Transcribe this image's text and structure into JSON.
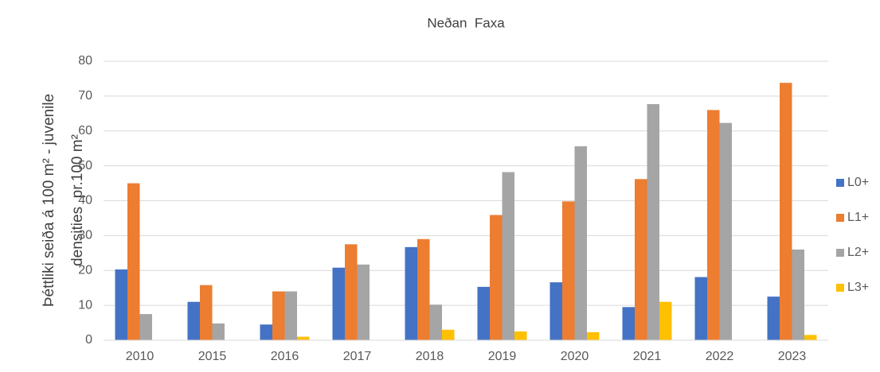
{
  "chart_data": {
    "type": "bar",
    "title": "Neðan  Faxa",
    "y_label": [
      "Þéttliki seiða á 100 m² - juvenile",
      "densities  pr.100 m²"
    ],
    "categories": [
      "2010",
      "2015",
      "2016",
      "2017",
      "2018",
      "2019",
      "2020",
      "2021",
      "2022",
      "2023"
    ],
    "series": [
      {
        "name": "L0+",
        "color": "#4472c4",
        "values": [
          20.3,
          11,
          4.5,
          20.8,
          26.7,
          15.3,
          16.6,
          9.5,
          18.1,
          12.5
        ]
      },
      {
        "name": "L1+",
        "color": "#ed7d31",
        "values": [
          45,
          15.8,
          14,
          27.5,
          29,
          35.9,
          39.8,
          46.2,
          66,
          73.8
        ]
      },
      {
        "name": "L2+",
        "color": "#a5a5a5",
        "values": [
          7.5,
          4.8,
          14,
          21.7,
          10.2,
          48.2,
          55.6,
          67.7,
          62.3,
          26
        ]
      },
      {
        "name": "L3+",
        "color": "#ffc000",
        "values": [
          0,
          0,
          1,
          0,
          3,
          2.5,
          2.3,
          11,
          0,
          1.5
        ]
      }
    ],
    "ylim": [
      0,
      80
    ],
    "yticks": [
      0,
      10,
      20,
      30,
      40,
      50,
      60,
      70,
      80
    ],
    "grid": true,
    "legend": "right"
  }
}
